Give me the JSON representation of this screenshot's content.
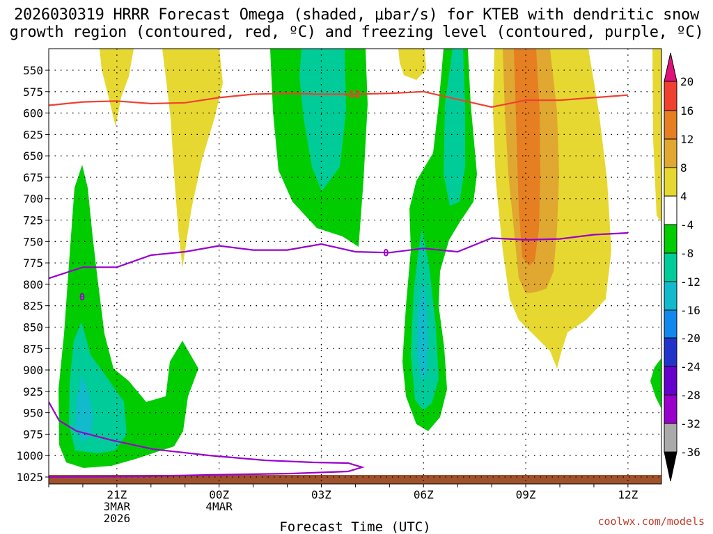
{
  "chart_data": {
    "type": "heatmap",
    "title_line1": "2026030319 HRRR Forecast Omega (shaded, μbar/s) for KTEB with dendritic snow",
    "title_line2": "growth region (contoured, red, ºC) and freezing level (contoured, purple, ºC)",
    "xlabel": "Forecast Time (UTC)",
    "y_ticks": [
      550,
      575,
      600,
      625,
      650,
      675,
      700,
      725,
      750,
      775,
      800,
      825,
      850,
      875,
      900,
      925,
      950,
      975,
      1000,
      1025
    ],
    "x_ticks": [
      {
        "hour": 2,
        "lines": [
          "21Z",
          "3MAR",
          "2026"
        ]
      },
      {
        "hour": 5,
        "lines": [
          "00Z",
          "4MAR"
        ]
      },
      {
        "hour": 8,
        "lines": [
          "03Z"
        ]
      },
      {
        "hour": 11,
        "lines": [
          "06Z"
        ]
      },
      {
        "hour": 14,
        "lines": [
          "09Z"
        ]
      },
      {
        "hour": 17,
        "lines": [
          "12Z"
        ]
      }
    ],
    "x_range_hours": [
      0,
      18
    ],
    "y_range_hpa": [
      530,
      1030
    ],
    "colorbar": {
      "colors": [
        "#aaaaaa",
        "#9900cc",
        "#6600cc",
        "#2233cc",
        "#1188ee",
        "#11bbcc",
        "#00cc99",
        "#00cc00",
        "#ffffff",
        "#e6d830",
        "#e0a830",
        "#e67e22",
        "#f04030",
        "#e0107a"
      ],
      "labels": [
        "-36",
        "-32",
        "-28",
        "-24",
        "-20",
        "-16",
        "-12",
        "-8",
        "-4",
        "4",
        "8",
        "12",
        "16",
        "20"
      ]
    },
    "contours": [
      {
        "name": "dendritic-growth-region",
        "label": "-12",
        "color": "#f04030",
        "levels_hpa": [
          591,
          587,
          586,
          589,
          588,
          582,
          578,
          577,
          578,
          578,
          577,
          575,
          584,
          593,
          585,
          585,
          582,
          579
        ]
      },
      {
        "name": "freezing-level",
        "label": "0",
        "color": "#9900cc",
        "levels_hpa": [
          793,
          780,
          780,
          766,
          762,
          755,
          760,
          760,
          753,
          762,
          763,
          758,
          762,
          746,
          748,
          747,
          742,
          740
        ]
      }
    ],
    "omega_regions": [
      {
        "category": "4",
        "description": "yellow upward-motion lobes near 550-750 hPa"
      },
      {
        "category": "-8",
        "description": "green sinking regions"
      },
      {
        "category": "-12",
        "description": "teal cores"
      }
    ],
    "ground_color": "#a0522d"
  },
  "credit": "coolwx.com/models"
}
